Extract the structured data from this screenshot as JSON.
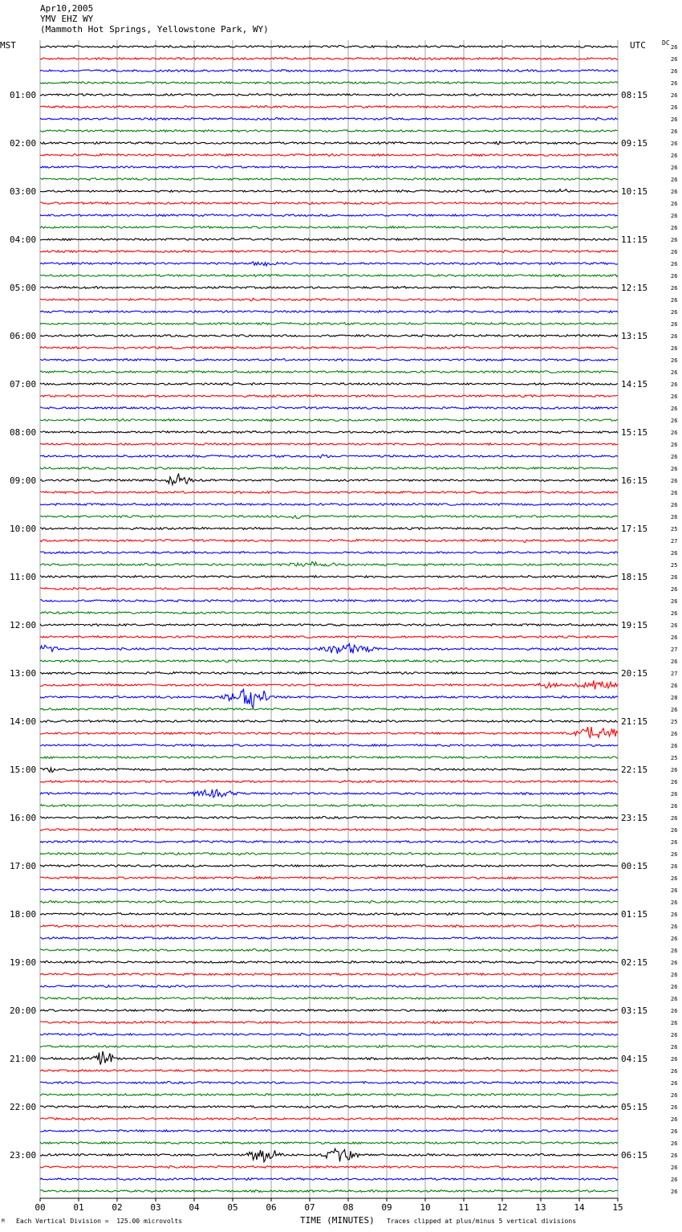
{
  "header": {
    "date": "Apr10,2005",
    "station": "YMV EHZ WY",
    "location": "(Mammoth Hot Springs, Yellowstone Park, WY)"
  },
  "left_zone": "MST",
  "right_zone": "UTC",
  "dc_label": "DC",
  "footer": {
    "scale_note": "Each Vertical Division =  125.00 microvolts",
    "x_title": "TIME (MINUTES)",
    "clip_note": "Traces clipped at plus/minus 5 vertical divisions",
    "corner_mark": "M"
  },
  "colors": {
    "trace_cycle": [
      "#000000",
      "#ff0000",
      "#0000ff",
      "#007f00"
    ],
    "grid": "#a0a0a0"
  },
  "chart_data": {
    "type": "line",
    "title": "YMV EHZ WY",
    "xlabel": "TIME (MINUTES)",
    "xlim": [
      0,
      15
    ],
    "x_ticks": [
      "00",
      "01",
      "02",
      "03",
      "04",
      "05",
      "06",
      "07",
      "08",
      "09",
      "10",
      "11",
      "12",
      "13",
      "14",
      "15"
    ],
    "trace_count": 96,
    "traces_per_hour": 4,
    "left_hour_labels": [
      "01:00",
      "02:00",
      "03:00",
      "04:00",
      "05:00",
      "06:00",
      "07:00",
      "08:00",
      "09:00",
      "10:00",
      "11:00",
      "12:00",
      "13:00",
      "14:00",
      "15:00",
      "16:00",
      "17:00",
      "18:00",
      "19:00",
      "20:00",
      "21:00",
      "22:00",
      "23:00"
    ],
    "right_hour_labels": [
      "08:15",
      "09:15",
      "10:15",
      "11:15",
      "12:15",
      "13:15",
      "14:15",
      "15:15",
      "16:15",
      "17:15",
      "18:15",
      "19:15",
      "20:15",
      "21:15",
      "22:15",
      "23:15",
      "00:15",
      "01:15",
      "02:15",
      "03:15",
      "04:15",
      "05:15",
      "06:15"
    ],
    "dc_values": [
      26,
      26,
      26,
      26,
      26,
      26,
      26,
      26,
      26,
      26,
      26,
      26,
      26,
      26,
      26,
      26,
      26,
      26,
      26,
      26,
      26,
      26,
      26,
      26,
      26,
      26,
      26,
      26,
      26,
      26,
      26,
      26,
      26,
      26,
      26,
      26,
      26,
      26,
      26,
      26,
      25,
      27,
      26,
      25,
      26,
      26,
      26,
      26,
      26,
      26,
      27,
      26,
      27,
      26,
      28,
      26,
      25,
      26,
      26,
      25,
      26,
      26,
      26,
      26,
      26,
      26,
      26,
      26,
      26,
      26,
      26,
      26,
      26,
      26,
      26,
      26,
      26,
      26,
      26,
      26,
      26,
      26,
      26,
      26,
      26,
      26,
      26,
      26,
      26,
      26,
      26,
      26,
      26,
      26,
      26,
      26
    ],
    "events": [
      {
        "trace": 36,
        "minute": 3.6,
        "amp": 12,
        "dur": 0.5
      },
      {
        "trace": 34,
        "minute": 7.3,
        "amp": 5,
        "dur": 0.3
      },
      {
        "trace": 12,
        "minute": 13.6,
        "amp": 5,
        "dur": 0.4
      },
      {
        "trace": 8,
        "minute": 11.9,
        "amp": 4,
        "dur": 0.2
      },
      {
        "trace": 18,
        "minute": 5.8,
        "amp": 4,
        "dur": 0.8
      },
      {
        "trace": 21,
        "minute": 5.6,
        "amp": 3,
        "dur": 0.6
      },
      {
        "trace": 39,
        "minute": 6.7,
        "amp": 6,
        "dur": 0.3
      },
      {
        "trace": 41,
        "minute": 12.6,
        "amp": 6,
        "dur": 0.1
      },
      {
        "trace": 43,
        "minute": 7.0,
        "amp": 4,
        "dur": 1.5
      },
      {
        "trace": 50,
        "minute": 8.0,
        "amp": 10,
        "dur": 1.0
      },
      {
        "trace": 50,
        "minute": 0.2,
        "amp": 7,
        "dur": 0.5
      },
      {
        "trace": 53,
        "minute": 13.2,
        "amp": 5,
        "dur": 0.5
      },
      {
        "trace": 53,
        "minute": 14.4,
        "amp": 8,
        "dur": 1.0
      },
      {
        "trace": 54,
        "minute": 5.4,
        "amp": 18,
        "dur": 0.8
      },
      {
        "trace": 57,
        "minute": 14.5,
        "amp": 14,
        "dur": 0.8
      },
      {
        "trace": 60,
        "minute": 0.3,
        "amp": 5,
        "dur": 0.3
      },
      {
        "trace": 62,
        "minute": 4.5,
        "amp": 7,
        "dur": 0.9
      },
      {
        "trace": 84,
        "minute": 1.7,
        "amp": 14,
        "dur": 0.4
      },
      {
        "trace": 92,
        "minute": 5.8,
        "amp": 13,
        "dur": 0.6
      },
      {
        "trace": 92,
        "minute": 7.8,
        "amp": 12,
        "dur": 0.6
      }
    ]
  }
}
